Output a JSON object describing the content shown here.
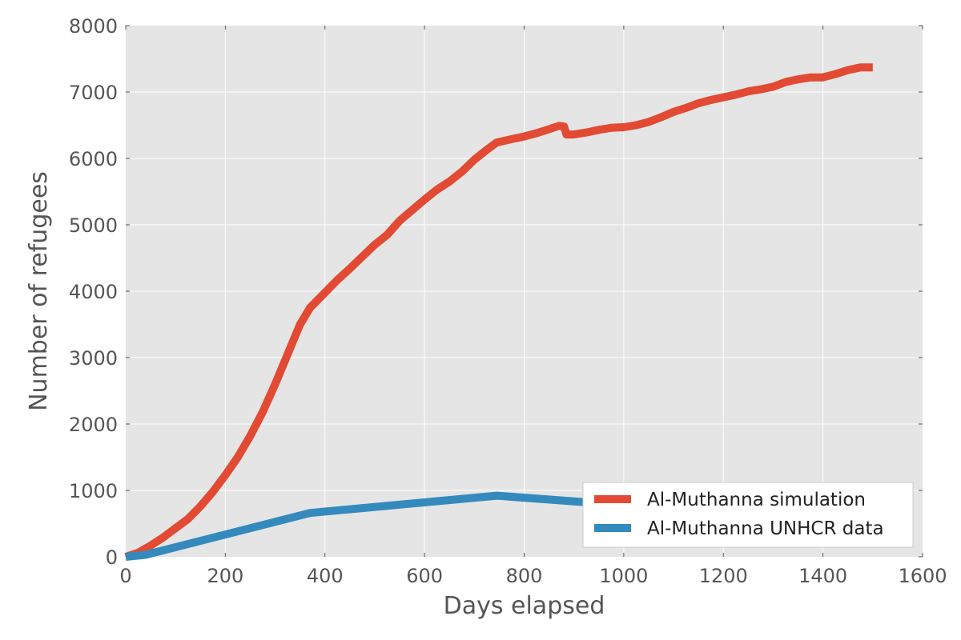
{
  "chart_data": {
    "type": "line",
    "title": "",
    "xlabel": "Days elapsed",
    "ylabel": "Number of refugees",
    "xlim": [
      0,
      1600
    ],
    "ylim": [
      0,
      8000
    ],
    "x_ticks": [
      0,
      200,
      400,
      600,
      800,
      1000,
      1200,
      1400,
      1600
    ],
    "y_ticks": [
      0,
      1000,
      2000,
      3000,
      4000,
      5000,
      6000,
      7000,
      8000
    ],
    "grid": true,
    "legend_position": "bottom-right",
    "style": "ggplot",
    "series": [
      {
        "name": "Al-Muthanna simulation",
        "color": "#E24A33",
        "x": [
          0,
          25,
          50,
          75,
          100,
          125,
          150,
          175,
          200,
          225,
          250,
          275,
          300,
          325,
          350,
          370,
          400,
          425,
          450,
          475,
          500,
          525,
          550,
          575,
          600,
          625,
          650,
          675,
          700,
          725,
          745,
          775,
          800,
          825,
          850,
          870,
          880,
          885,
          900,
          925,
          950,
          975,
          1000,
          1025,
          1050,
          1075,
          1100,
          1125,
          1150,
          1175,
          1200,
          1225,
          1250,
          1275,
          1300,
          1325,
          1350,
          1375,
          1400,
          1425,
          1450,
          1475,
          1500
        ],
        "y": [
          0,
          60,
          170,
          290,
          430,
          570,
          760,
          980,
          1230,
          1500,
          1820,
          2180,
          2600,
          3050,
          3500,
          3750,
          3980,
          4170,
          4340,
          4520,
          4700,
          4850,
          5060,
          5220,
          5380,
          5530,
          5650,
          5800,
          5980,
          6130,
          6240,
          6290,
          6330,
          6380,
          6440,
          6490,
          6480,
          6360,
          6360,
          6390,
          6430,
          6460,
          6470,
          6500,
          6550,
          6620,
          6700,
          6760,
          6830,
          6880,
          6920,
          6960,
          7010,
          7040,
          7080,
          7150,
          7190,
          7220,
          7220,
          7270,
          7330,
          7370,
          7370
        ]
      },
      {
        "name": "Al-Muthanna UNHCR data",
        "color": "#348ABD",
        "x": [
          0,
          40,
          370,
          745,
          1000
        ],
        "y": [
          0,
          30,
          660,
          920,
          780
        ]
      }
    ]
  }
}
